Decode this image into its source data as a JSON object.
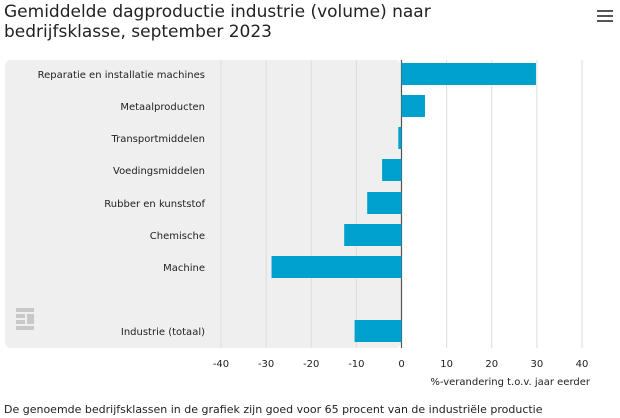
{
  "chart_data": {
    "type": "bar",
    "orientation": "horizontal",
    "title": "Gemiddelde dagproductie industrie (volume) naar bedrijfsklasse, september 2023",
    "categories": [
      "Reparatie en installatie machines",
      "Metaalproducten",
      "Transportmiddelen",
      "Voedingsmiddelen",
      "Rubber en kunststof",
      "Chemische",
      "Machine",
      "Industrie (totaal)"
    ],
    "values": [
      29.8,
      5.2,
      -0.7,
      -4.3,
      -7.6,
      -12.7,
      -28.8,
      -10.4
    ],
    "xlabel": "%-verandering t.o.v. jaar eerder",
    "ylabel": "",
    "xlim": [
      -40,
      40
    ],
    "xticks": [
      "-40",
      "-30",
      "-20",
      "-10",
      "0",
      "10",
      "20",
      "30",
      "40"
    ],
    "bar_color": "#00a1cd",
    "grid": true
  },
  "header": {
    "menu_icon": "hamburger-menu-icon"
  },
  "footer": {
    "note": "De genoemde bedrijfsklassen in de grafiek zijn goed voor 65 procent van de industriële productie"
  },
  "logo": {
    "text": "cbs"
  }
}
